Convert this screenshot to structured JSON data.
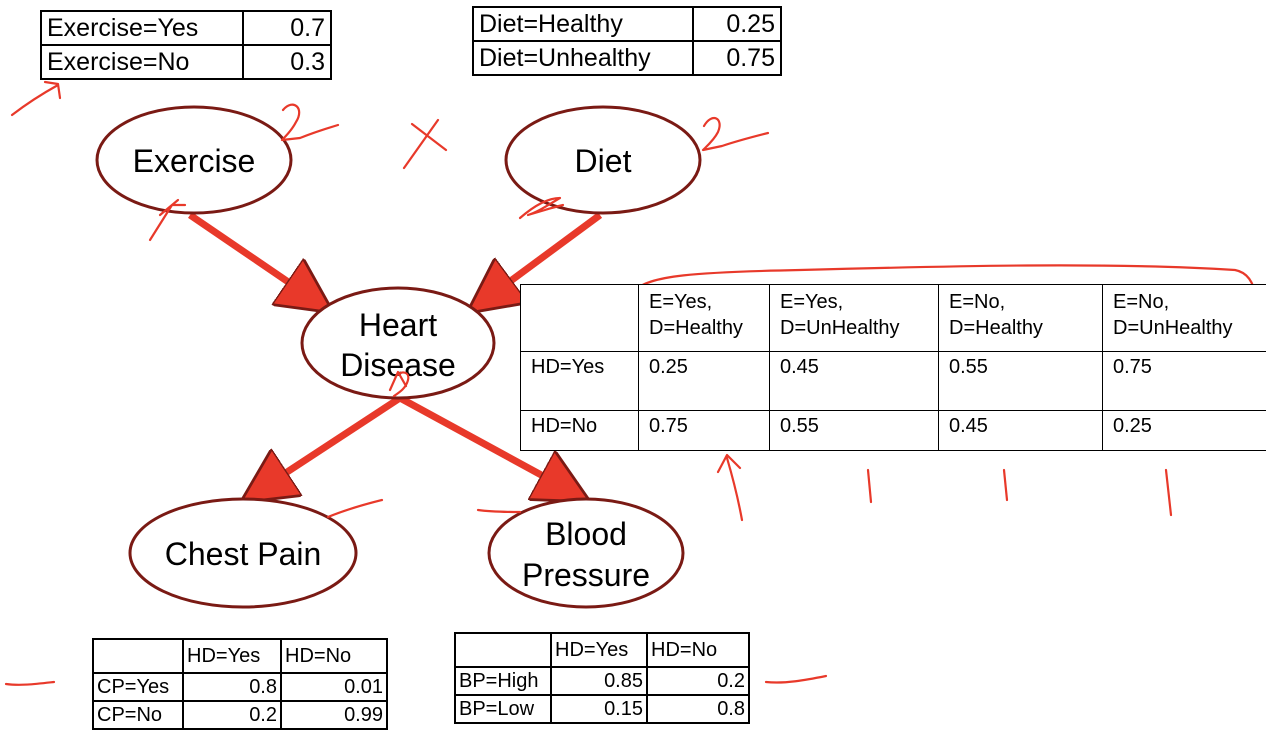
{
  "exercise_table": {
    "rows": [
      {
        "label": "Exercise=Yes",
        "value": "0.7"
      },
      {
        "label": "Exercise=No",
        "value": "0.3"
      }
    ]
  },
  "diet_table": {
    "rows": [
      {
        "label": "Diet=Healthy",
        "value": "0.25"
      },
      {
        "label": "Diet=Unhealthy",
        "value": "0.75"
      }
    ]
  },
  "nodes": {
    "exercise": "Exercise",
    "diet": "Diet",
    "heart_disease_line1": "Heart",
    "heart_disease_line2": "Disease",
    "chest_pain": "Chest Pain",
    "blood_pressure_line1": "Blood",
    "blood_pressure_line2": "Pressure"
  },
  "hd_table": {
    "columns": [
      {
        "line1": "E=Yes,",
        "line2": "D=Healthy"
      },
      {
        "line1": "E=Yes,",
        "line2": "D=UnHealthy"
      },
      {
        "line1": "E=No,",
        "line2": "D=Healthy"
      },
      {
        "line1": "E=No,",
        "line2": "D=UnHealthy"
      }
    ],
    "rows": [
      {
        "label": "HD=Yes",
        "values": [
          "0.25",
          "0.45",
          "0.55",
          "0.75"
        ]
      },
      {
        "label": "HD=No",
        "values": [
          "0.75",
          "0.55",
          "0.45",
          "0.25"
        ]
      }
    ]
  },
  "cp_table": {
    "columns": [
      "HD=Yes",
      "HD=No"
    ],
    "rows": [
      {
        "label": "CP=Yes",
        "values": [
          "0.8",
          "0.01"
        ]
      },
      {
        "label": "CP=No",
        "values": [
          "0.2",
          "0.99"
        ]
      }
    ]
  },
  "bp_table": {
    "columns": [
      "HD=Yes",
      "HD=No"
    ],
    "rows": [
      {
        "label": "BP=High",
        "values": [
          "0.85",
          "0.2"
        ]
      },
      {
        "label": "BP=Low",
        "values": [
          "0.15",
          "0.8"
        ]
      }
    ]
  },
  "colors": {
    "node_outline": "#7a1a14",
    "arrow": "#e8392a",
    "annotation": "#e8392a"
  }
}
